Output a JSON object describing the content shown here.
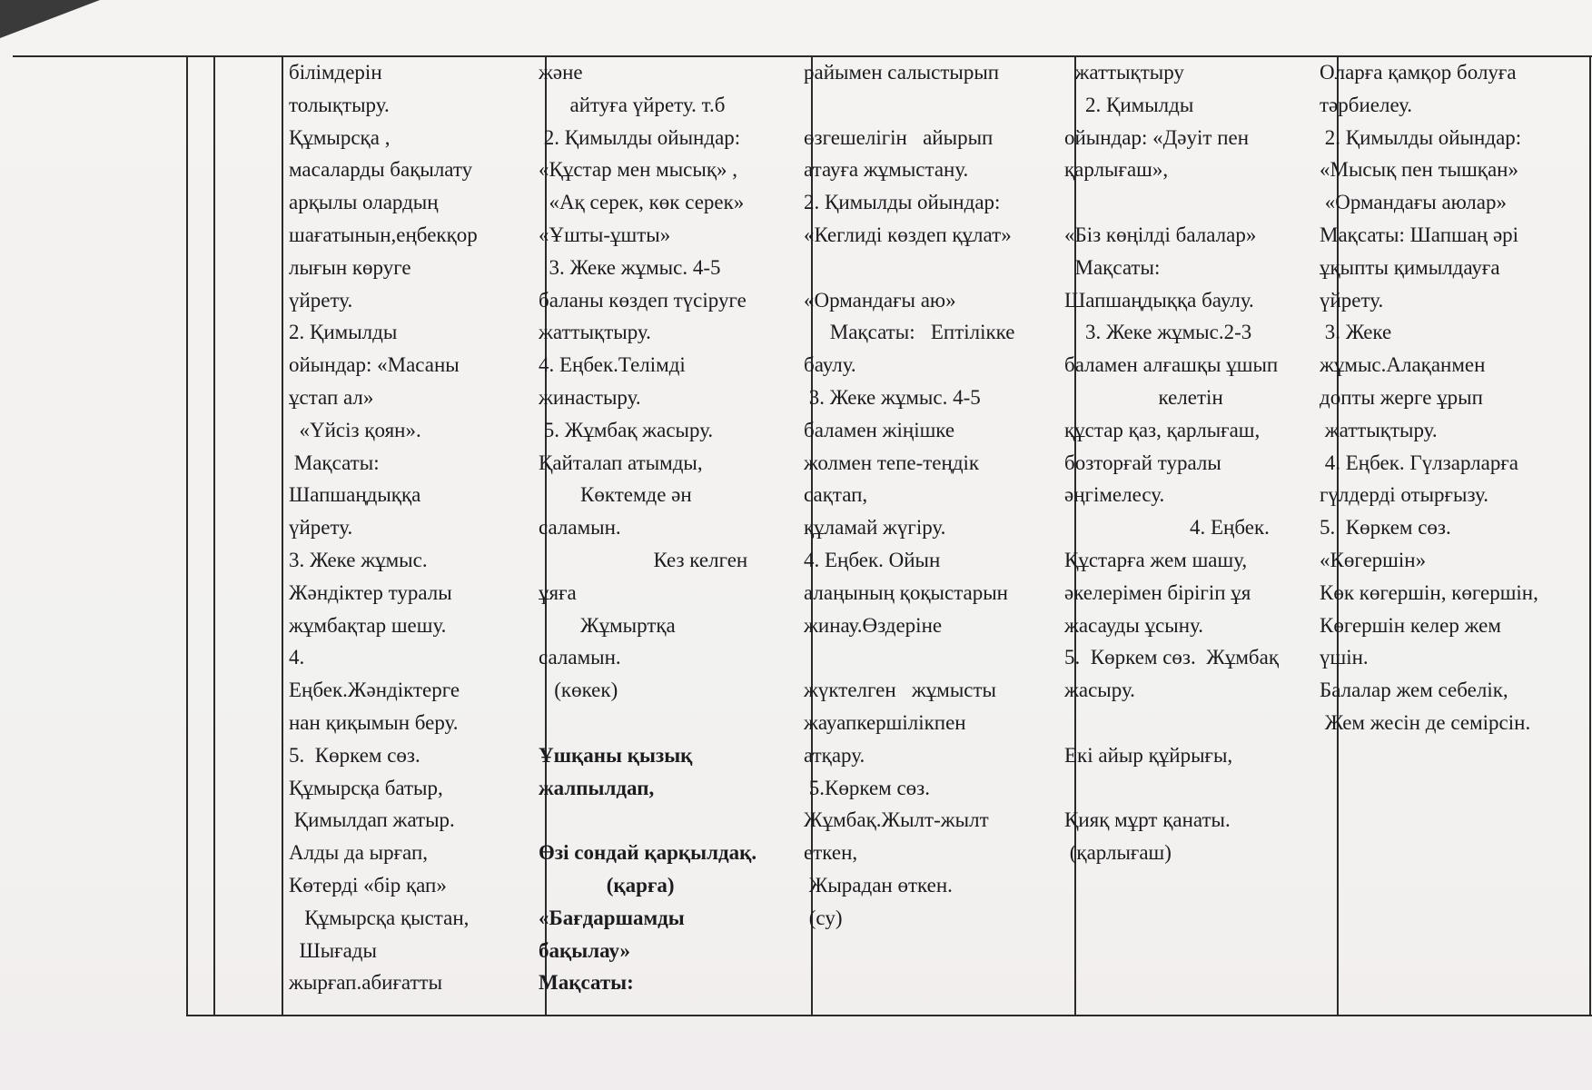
{
  "columns": [
    {
      "lines": [
        {
          "text": "білімдерін"
        },
        {
          "text": "толықтыру."
        },
        {
          "text": "Құмырсқа ,"
        },
        {
          "text": "масаларды бақылату"
        },
        {
          "text": "арқылы олардың"
        },
        {
          "text": "шағатынын,еңбекқор"
        },
        {
          "text": "лығын көруге"
        },
        {
          "text": "үйрету."
        },
        {
          "text": "2. Қимылды"
        },
        {
          "text": "ойындар: «Масаны"
        },
        {
          "text": "ұстап ал»"
        },
        {
          "text": "  «Үйсіз қоян»."
        },
        {
          "text": " Мақсаты:"
        },
        {
          "text": "Шапшаңдыққа"
        },
        {
          "text": "үйрету."
        },
        {
          "text": "3. Жеке жұмыс."
        },
        {
          "text": "Жәндіктер туралы"
        },
        {
          "text": "жұмбақтар шешу."
        },
        {
          "text": "4."
        },
        {
          "text": "Еңбек.Жәндіктерге"
        },
        {
          "text": "нан қиқымын беру."
        },
        {
          "text": "5.  Көркем сөз."
        },
        {
          "text": "Құмырсқа батыр,"
        },
        {
          "text": " Қимылдап жатыр."
        },
        {
          "text": "Алды да ырғап,"
        },
        {
          "text": "Көтерді «бір қап»"
        },
        {
          "text": "   Құмырсқа қыстан,"
        },
        {
          "text": "  Шығады"
        },
        {
          "text": "жырғап.абиғатты"
        }
      ]
    },
    {
      "lines": [
        {
          "text": "және"
        },
        {
          "text": "      айтуға үйрету. т.б"
        },
        {
          "text": " 2. Қимылды ойындар:"
        },
        {
          "text": "«Құстар мен мысық» ,"
        },
        {
          "text": "  «Ақ серек, көк серек»"
        },
        {
          "text": "«Ұшты-ұшты»"
        },
        {
          "text": "  3. Жеке жұмыс. 4-5"
        },
        {
          "text": "баланы көздеп түсіруге"
        },
        {
          "text": "жаттықтыру."
        },
        {
          "text": "4. Еңбек.Телімді"
        },
        {
          "text": "жинастыру."
        },
        {
          "text": " 5. Жұмбақ жасыру."
        },
        {
          "text": "Қайталап атымды,"
        },
        {
          "text": "        Көктемде ән"
        },
        {
          "text": "саламын."
        },
        {
          "text": "                      Кез келген"
        },
        {
          "text": "ұяға"
        },
        {
          "text": "        Жұмыртқа"
        },
        {
          "text": "саламын."
        },
        {
          "text": "   (көкек)"
        },
        {
          "text": ""
        },
        {
          "text": "Ұшқаны қызық",
          "bold": true
        },
        {
          "text": "жалпылдап,",
          "bold": true
        },
        {
          "text": ""
        },
        {
          "text": "Өзі сондай қарқылдақ.",
          "bold": true
        },
        {
          "text": "             (қарға)",
          "bold": true
        },
        {
          "text": "«Бағдаршамды",
          "bold": true
        },
        {
          "text": "бақылау»",
          "bold": true
        },
        {
          "text": "Мақсаты:",
          "bold": true
        }
      ]
    },
    {
      "lines": [
        {
          "text": "райымен салыстырып"
        },
        {
          "text": ""
        },
        {
          "text": "өзгешелігін   айырып"
        },
        {
          "text": "атауға жұмыстану."
        },
        {
          "text": "2. Қимылды ойындар:"
        },
        {
          "text": "«Кеглиді көздеп құлат»"
        },
        {
          "text": ""
        },
        {
          "text": "«Ормандағы аю»"
        },
        {
          "text": "     Мақсаты:   Ептілікке"
        },
        {
          "text": "баулу."
        },
        {
          "text": " 3. Жеке жұмыс. 4-5"
        },
        {
          "text": "баламен жіңішке"
        },
        {
          "text": "жолмен тепе-теңдік"
        },
        {
          "text": "сақтап,"
        },
        {
          "text": "құламай жүгіру."
        },
        {
          "text": "4. Еңбек. Ойын"
        },
        {
          "text": "алаңының қоқыстарын"
        },
        {
          "text": "жинау.Өздеріне"
        },
        {
          "text": ""
        },
        {
          "text": "жүктелген   жұмысты"
        },
        {
          "text": "жауапкершілікпен"
        },
        {
          "text": "атқару."
        },
        {
          "text": " 5.Көркем сөз."
        },
        {
          "text": "Жұмбақ.Жылт-жылт"
        },
        {
          "text": "еткен,"
        },
        {
          "text": " Жырадан өткен."
        },
        {
          "text": " (су)"
        }
      ]
    },
    {
      "lines": [
        {
          "text": "  жаттықтыру"
        },
        {
          "text": "    2. Қимылды"
        },
        {
          "text": "ойындар: «Дәуіт пен"
        },
        {
          "text": "қарлығаш»,"
        },
        {
          "text": ""
        },
        {
          "text": "«Біз көңілді балалар»"
        },
        {
          "text": "  Мақсаты:"
        },
        {
          "text": "Шапшаңдыққа баулу."
        },
        {
          "text": "    3. Жеке жұмыс.2-3"
        },
        {
          "text": "баламен алғашқы ұшып"
        },
        {
          "text": "                  келетін"
        },
        {
          "text": "құстар қаз, қарлығаш,"
        },
        {
          "text": "бозторғай туралы"
        },
        {
          "text": "әңгімелесу."
        },
        {
          "text": "                        4. Еңбек."
        },
        {
          "text": "Құстарға жем шашу,"
        },
        {
          "text": "әкелерімен бірігіп ұя"
        },
        {
          "text": "жасауды ұсыну."
        },
        {
          "text": "5.  Көркем сөз.  Жұмбақ"
        },
        {
          "text": "жасыру."
        },
        {
          "text": ""
        },
        {
          "text": "Екі айыр құйрығы,"
        },
        {
          "text": ""
        },
        {
          "text": "Қияқ мұрт қанаты."
        },
        {
          "text": " (қарлығаш)"
        }
      ]
    },
    {
      "lines": [
        {
          "text": "Оларға қамқор болуға"
        },
        {
          "text": "тәрбиелеу."
        },
        {
          "text": " 2. Қимылды ойындар:"
        },
        {
          "text": "«Мысық пен тышқан»"
        },
        {
          "text": " «Ормандағы аюлар»"
        },
        {
          "text": "Мақсаты: Шапшаң әрі"
        },
        {
          "text": "ұқыпты қимылдауға"
        },
        {
          "text": "үйрету."
        },
        {
          "text": " 3. Жеке"
        },
        {
          "text": "жұмыс.Алақанмен"
        },
        {
          "text": "допты жерге ұрып"
        },
        {
          "text": " жаттықтыру."
        },
        {
          "text": " 4. Еңбек. Гүлзарларға"
        },
        {
          "text": "гүлдерді отырғызу."
        },
        {
          "text": "5.  Көркем сөз."
        },
        {
          "text": "«Көгершін»"
        },
        {
          "text": "Көк көгершін, көгершін,"
        },
        {
          "text": "Көгершін келер жем"
        },
        {
          "text": "үшін."
        },
        {
          "text": "Балалар жем себелік,"
        },
        {
          "text": " Жем жесін де семірсін."
        }
      ]
    }
  ]
}
